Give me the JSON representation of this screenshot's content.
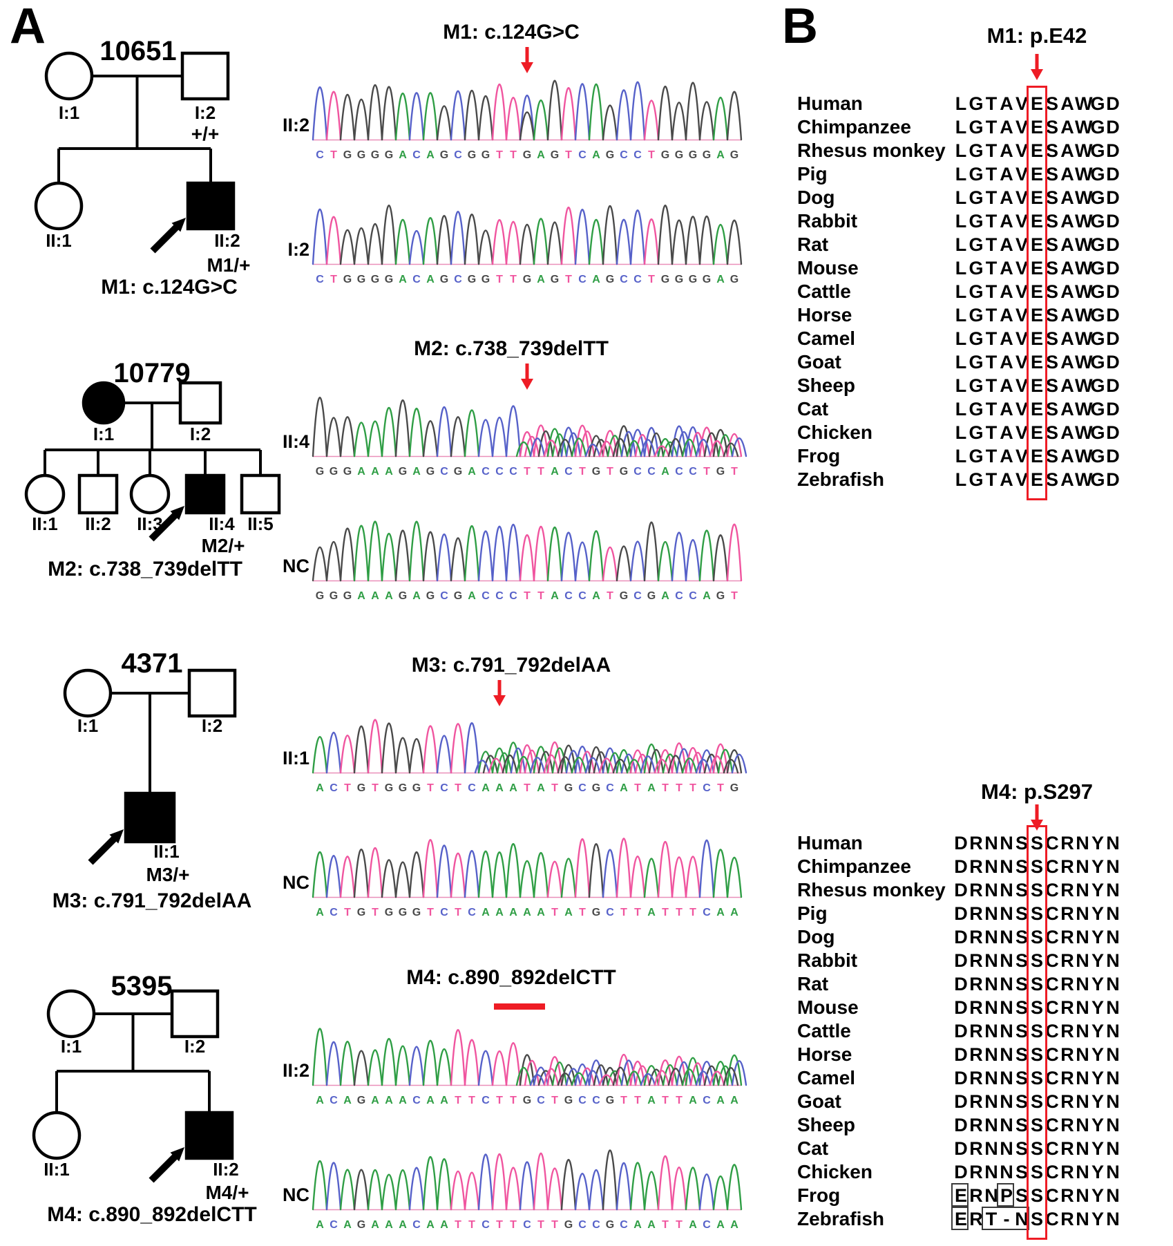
{
  "panelA": {
    "label": "A"
  },
  "panelB": {
    "label": "B"
  },
  "base_colors": {
    "A": "#2f9e45",
    "C": "#5661c9",
    "G": "#4a4a4a",
    "T": "#f0559f"
  },
  "accent_red": "#ee1c25",
  "families": [
    {
      "family_id": "10651",
      "caption": "M1: c.124G>C",
      "members": {
        "parents": [
          {
            "id": "I:1",
            "sex": "F",
            "affected": false
          },
          {
            "id": "I:2",
            "sex": "M",
            "affected": false,
            "genotype": "+/+"
          }
        ],
        "children": [
          {
            "id": "II:1",
            "sex": "F",
            "affected": false
          },
          {
            "id": "II:2",
            "sex": "M",
            "affected": true,
            "proband": true,
            "genotype": "M1/+"
          }
        ]
      },
      "sequencing": {
        "title": "M1: c.124G>C",
        "marker": {
          "shape": "arrow",
          "base_index": 15
        },
        "traces": [
          {
            "label": "II:2",
            "sequence": "CTGGGGACAGCGGTTGAGTCAGCCTGGGGAG",
            "mixed_peak_at": 15
          },
          {
            "label": "I:2",
            "sequence": "CTGGGGACAGCGGTTGAGTCAGCCTGGGGAG"
          }
        ]
      }
    },
    {
      "family_id": "10779",
      "caption": "M2: c.738_739delTT",
      "members": {
        "parents": [
          {
            "id": "I:1",
            "sex": "F",
            "affected": true
          },
          {
            "id": "I:2",
            "sex": "M",
            "affected": false
          }
        ],
        "children": [
          {
            "id": "II:1",
            "sex": "F",
            "affected": false
          },
          {
            "id": "II:2",
            "sex": "M",
            "affected": false
          },
          {
            "id": "II:3",
            "sex": "F",
            "affected": false
          },
          {
            "id": "II:4",
            "sex": "M",
            "affected": true,
            "proband": true,
            "genotype": "M2/+"
          },
          {
            "id": "II:5",
            "sex": "M",
            "affected": false
          }
        ]
      },
      "sequencing": {
        "title": "M2: c.738_739delTT",
        "marker": {
          "shape": "arrow",
          "base_index": 15
        },
        "traces": [
          {
            "label": "II:4",
            "sequence": "GGGAAAGAGCGACCCTTACTGTGCCACCTGT",
            "mixed_peaks_from": 15
          },
          {
            "label": "NC",
            "sequence": "GGGAAAGAGCGACCCTTACCATGCGACCAGT"
          }
        ]
      }
    },
    {
      "family_id": "4371",
      "caption": "M3: c.791_792delAA",
      "members": {
        "parents": [
          {
            "id": "I:1",
            "sex": "F",
            "affected": false
          },
          {
            "id": "I:2",
            "sex": "M",
            "affected": false
          }
        ],
        "children": [
          {
            "id": "II:1",
            "sex": "M",
            "affected": true,
            "proband": true,
            "genotype": "M3/+"
          }
        ]
      },
      "sequencing": {
        "title": "M3: c.791_792delAA",
        "marker": {
          "shape": "arrow",
          "base_index": 13
        },
        "traces": [
          {
            "label": "II:1",
            "sequence": "ACTGTGGGTCTCAAATATGCGCATATTTCTG",
            "mixed_peaks_from": 12
          },
          {
            "label": "NC",
            "sequence": "ACTGTGGGTCTCAAAAATATGCTTATTTCAA"
          }
        ]
      }
    },
    {
      "family_id": "5395",
      "caption": "M4: c.890_892delCTT",
      "members": {
        "parents": [
          {
            "id": "I:1",
            "sex": "F",
            "affected": false
          },
          {
            "id": "I:2",
            "sex": "M",
            "affected": false
          }
        ],
        "children": [
          {
            "id": "II:1",
            "sex": "F",
            "affected": false
          },
          {
            "id": "II:2",
            "sex": "M",
            "affected": true,
            "proband": true,
            "genotype": "M4/+"
          }
        ]
      },
      "sequencing": {
        "title": "M4: c.890_892delCTT",
        "marker": {
          "shape": "bar",
          "base_start": 13,
          "base_end": 16
        },
        "traces": [
          {
            "label": "II:2",
            "sequence": "ACAGAAACAATTCTTGCTGCCGTTATTACAA",
            "mixed_peaks_from": 15
          },
          {
            "label": "NC",
            "sequence": "ACAGAAACAATTCTTCTTGCCGCAATTACAA"
          }
        ]
      }
    }
  ],
  "alignments": [
    {
      "title": "M1: p.E42",
      "highlight_column": 5,
      "rows": [
        {
          "species": "Human",
          "sequence": "LGTAVESAWGD"
        },
        {
          "species": "Chimpanzee",
          "sequence": "LGTAVESAWGD"
        },
        {
          "species": "Rhesus monkey",
          "sequence": "LGTAVESAWGD"
        },
        {
          "species": "Pig",
          "sequence": "LGTAVESAWGD"
        },
        {
          "species": "Dog",
          "sequence": "LGTAVESAWGD"
        },
        {
          "species": "Rabbit",
          "sequence": "LGTAVESAWGD"
        },
        {
          "species": "Rat",
          "sequence": "LGTAVESAWGD"
        },
        {
          "species": "Mouse",
          "sequence": "LGTAVESAWGD"
        },
        {
          "species": "Cattle",
          "sequence": "LGTAVESAWGD"
        },
        {
          "species": "Horse",
          "sequence": "LGTAVESAWGD"
        },
        {
          "species": "Camel",
          "sequence": "LGTAVESAWGD"
        },
        {
          "species": "Goat",
          "sequence": "LGTAVESAWGD"
        },
        {
          "species": "Sheep",
          "sequence": "LGTAVESAWGD"
        },
        {
          "species": "Cat",
          "sequence": "LGTAVESAWGD"
        },
        {
          "species": "Chicken",
          "sequence": "LGTAVESAWGD"
        },
        {
          "species": "Frog",
          "sequence": "LGTAVESAWGD"
        },
        {
          "species": "Zebrafish",
          "sequence": "LGTAVESAWGD"
        }
      ]
    },
    {
      "title": "M4: p.S297",
      "highlight_column": 5,
      "rows": [
        {
          "species": "Human",
          "sequence": "DRNNSSCRNYN"
        },
        {
          "species": "Chimpanzee",
          "sequence": "DRNNSSCRNYN"
        },
        {
          "species": "Rhesus monkey",
          "sequence": "DRNNSSCRNYN"
        },
        {
          "species": "Pig",
          "sequence": "DRNNSSCRNYN"
        },
        {
          "species": "Dog",
          "sequence": "DRNNSSCRNYN"
        },
        {
          "species": "Rabbit",
          "sequence": "DRNNSSCRNYN"
        },
        {
          "species": "Rat",
          "sequence": "DRNNSSCRNYN"
        },
        {
          "species": "Mouse",
          "sequence": "DRNNSSCRNYN"
        },
        {
          "species": "Cattle",
          "sequence": "DRNNSSCRNYN"
        },
        {
          "species": "Horse",
          "sequence": "DRNNSSCRNYN"
        },
        {
          "species": "Camel",
          "sequence": "DRNNSSCRNYN"
        },
        {
          "species": "Goat",
          "sequence": "DRNNSSCRNYN"
        },
        {
          "species": "Sheep",
          "sequence": "DRNNSSCRNYN"
        },
        {
          "species": "Cat",
          "sequence": "DRNNSSCRNYN"
        },
        {
          "species": "Chicken",
          "sequence": "DRNNSSCRNYN"
        },
        {
          "species": "Frog",
          "sequence": "ERNPSSCRNYN",
          "outlined_ranges": [
            [
              0,
              0
            ],
            [
              3,
              3
            ]
          ]
        },
        {
          "species": "Zebrafish",
          "sequence": "ERT-NSCRNYN",
          "outlined_ranges": [
            [
              0,
              0
            ],
            [
              2,
              4
            ]
          ]
        }
      ]
    }
  ]
}
